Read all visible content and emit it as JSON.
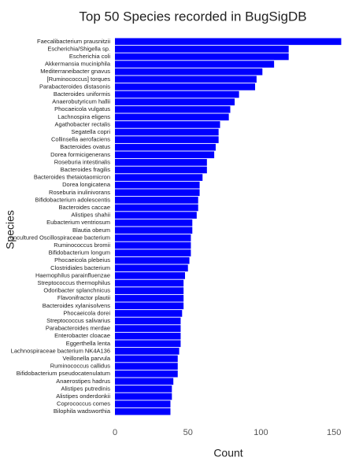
{
  "chart_data": {
    "type": "bar",
    "orientation": "horizontal",
    "title": "Top 50 Species recorded in BugSigDB",
    "x_label": "Count",
    "y_label": "Species",
    "color": "#0000ff",
    "categories": [
      "Faecalibacterium prausnitzii",
      "Escherichia/Shigella sp.",
      "Escherichia coli",
      "Akkermansia muciniphila",
      "Mediterraneibacter gnavus",
      "[Ruminococcus] torques",
      "Parabacteroides distasonis",
      "Bacteroides uniformis",
      "Anaerobutyricum hallii",
      "Phocaeicola vulgatus",
      "Lachnospira eligens",
      "Agathobacter rectalis",
      "Segatella copri",
      "Collinsella aerofaciens",
      "Bacteroides ovatus",
      "Dorea formicigenerans",
      "Roseburia intestinalis",
      "Bacteroides fragilis",
      "Bacteroides thetaiotaomicron",
      "Dorea longicatena",
      "Roseburia inulinivorans",
      "Bifidobacterium adolescentis",
      "Bacteroides caccae",
      "Alistipes shahii",
      "Eubacterium ventriosum",
      "Blautia obeum",
      "uncultured Oscillospiraceae bacterium",
      "Ruminococcus bromii",
      "Bifidobacterium longum",
      "Phocaeicola plebeius",
      "Clostridiales bacterium",
      "Haemophilus parainfluenzae",
      "Streptococcus thermophilus",
      "Odoribacter splanchnicus",
      "Flavonifractor plautii",
      "Bacteroides xylanisolvens",
      "Phocaeicola dorei",
      "Streptococcus salivarius",
      "Parabacteroides merdae",
      "Enterobacter cloacae",
      "Eggerthella lenta",
      "Lachnospiraceae bacterium NK4A136",
      "Veillonella parvula",
      "Ruminococcus callidus",
      "Bifidobacterium pseudocatenulatum",
      "Anaerostipes hadrus",
      "Alistipes putredinis",
      "Alistipes onderdonkii",
      "Coprococcus comes",
      "Bilophila wadsworthia"
    ],
    "values": [
      155,
      119,
      119,
      109,
      101,
      97,
      96,
      85,
      82,
      79,
      78,
      72,
      71,
      71,
      69,
      68,
      63,
      63,
      60,
      58,
      58,
      57,
      57,
      56,
      53,
      53,
      52,
      52,
      52,
      51,
      50,
      48,
      47,
      47,
      47,
      47,
      46,
      45,
      45,
      45,
      45,
      44,
      43,
      43,
      43,
      40,
      39,
      39,
      38,
      38
    ],
    "xlim": [
      0,
      158
    ],
    "xticks": [
      0,
      50,
      100,
      150
    ]
  }
}
